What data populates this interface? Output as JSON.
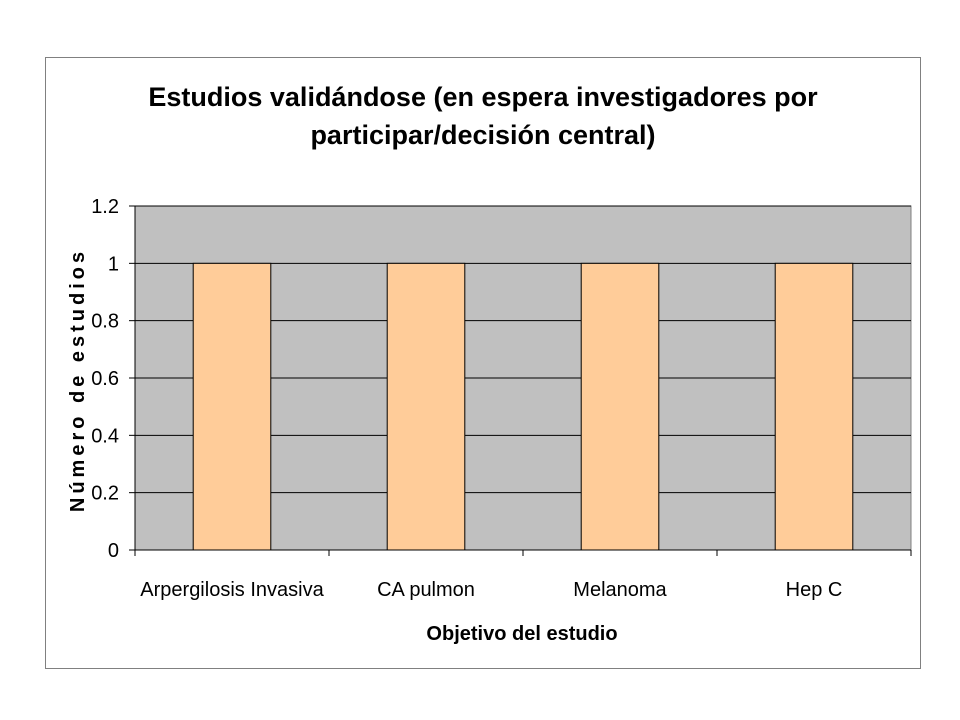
{
  "chart_data": {
    "type": "bar",
    "title_lines": [
      "Estudios validándose (en espera investigadores por",
      "participar/decisión central)"
    ],
    "xlabel": "Objetivo del estudio",
    "ylabel": "Número de estudios",
    "categories": [
      "Arpergilosis Invasiva",
      "CA pulmon",
      "Melanoma",
      "Hep C"
    ],
    "values": [
      1,
      1,
      1,
      1
    ],
    "ylim": [
      0,
      1.2
    ],
    "yticks": [
      "0",
      "0.2",
      "0.4",
      "0.6",
      "0.8",
      "1",
      "1.2"
    ],
    "grid": true,
    "legend": "none",
    "colors": {
      "bar_fill": "#FFCC99",
      "bar_stroke": "#000000",
      "plot_bg": "#C0C0C0",
      "grid": "#000000"
    }
  }
}
